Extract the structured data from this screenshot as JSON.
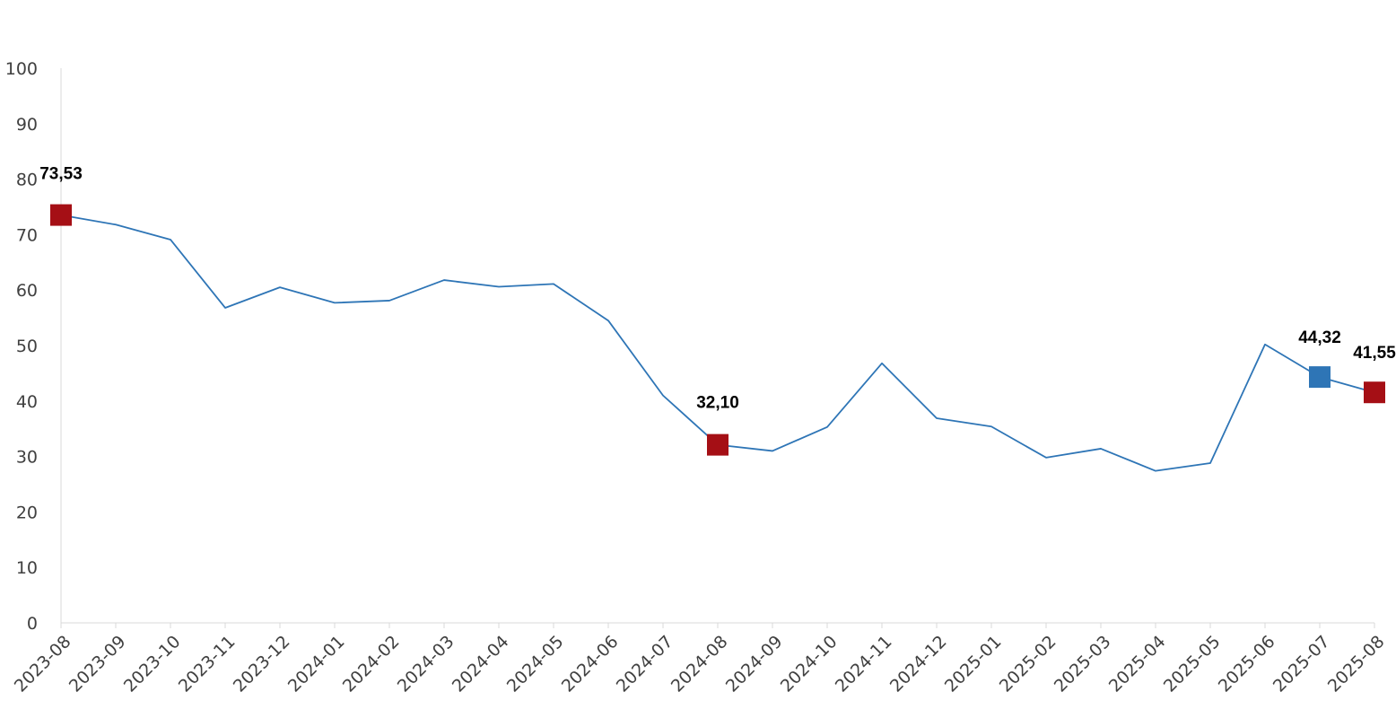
{
  "chart_data": {
    "type": "line",
    "title": "",
    "xlabel": "",
    "ylabel": "",
    "ylim": [
      0,
      100
    ],
    "yticks": [
      0,
      10,
      20,
      30,
      40,
      50,
      60,
      70,
      80,
      90,
      100
    ],
    "grid": false,
    "legend": "none",
    "categories": [
      "2023-08",
      "2023-09",
      "2023-10",
      "2023-11",
      "2023-12",
      "2024-01",
      "2024-02",
      "2024-03",
      "2024-04",
      "2024-05",
      "2024-06",
      "2024-07",
      "2024-08",
      "2024-09",
      "2024-10",
      "2024-11",
      "2024-12",
      "2025-01",
      "2025-02",
      "2025-03",
      "2025-04",
      "2025-05",
      "2025-06",
      "2025-07",
      "2025-08"
    ],
    "series": [
      {
        "values": [
          73.53,
          71.8,
          69.1,
          56.8,
          60.5,
          57.7,
          58.1,
          61.8,
          60.6,
          61.1,
          54.5,
          41.0,
          32.1,
          31.0,
          35.3,
          46.8,
          36.9,
          35.4,
          29.8,
          31.4,
          27.4,
          28.8,
          50.2,
          44.32,
          41.55
        ],
        "color": "#2e75b6"
      }
    ],
    "highlighted_points": [
      {
        "index": 0,
        "label": "73,53",
        "color": "#a50f15"
      },
      {
        "index": 12,
        "label": "32,10",
        "color": "#a50f15"
      },
      {
        "index": 23,
        "label": "44,32",
        "color": "#2e75b6"
      },
      {
        "index": 24,
        "label": "41,55",
        "color": "#a50f15"
      }
    ],
    "axis_color": "#d9d9d9"
  }
}
